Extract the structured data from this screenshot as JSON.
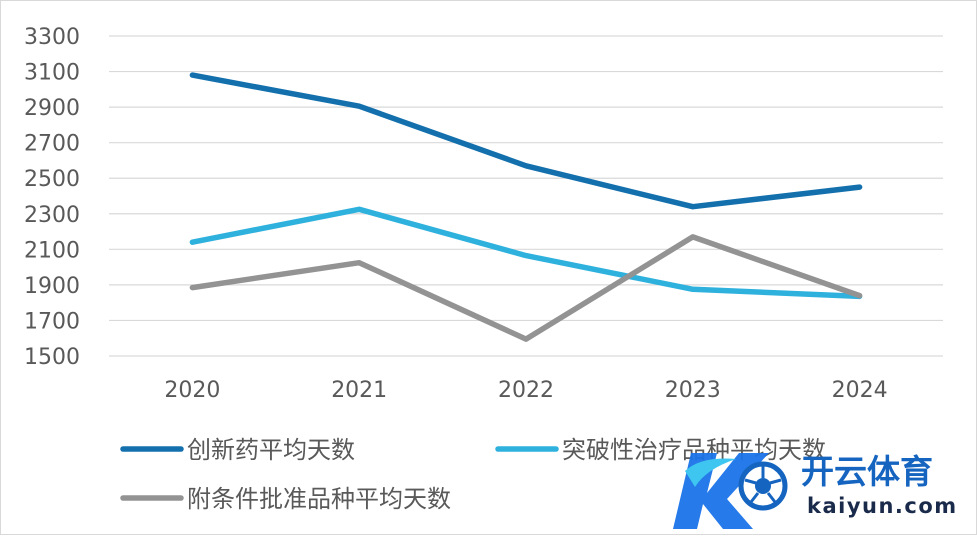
{
  "chart_data": {
    "type": "line",
    "categories": [
      "2020",
      "2021",
      "2022",
      "2023",
      "2024"
    ],
    "series": [
      {
        "name": "创新药平均天数",
        "color": "#1370ad",
        "values": [
          3080,
          2905,
          2570,
          2340,
          2450
        ]
      },
      {
        "name": "突破性治疗品种平均天数",
        "color": "#2fb1dd",
        "values": [
          2140,
          2325,
          2065,
          1875,
          1835
        ]
      },
      {
        "name": "附条件批准品种平均天数",
        "color": "#939393",
        "values": [
          1885,
          2025,
          1595,
          2170,
          1840
        ]
      }
    ],
    "y_ticks": [
      1500,
      1700,
      1900,
      2100,
      2300,
      2500,
      2700,
      2900,
      3100,
      3300
    ],
    "ylim": [
      1500,
      3300
    ],
    "grid": true,
    "legend_position": "bottom"
  },
  "watermark": {
    "title": "开云体育",
    "subtitle": "kaiyun.com"
  }
}
